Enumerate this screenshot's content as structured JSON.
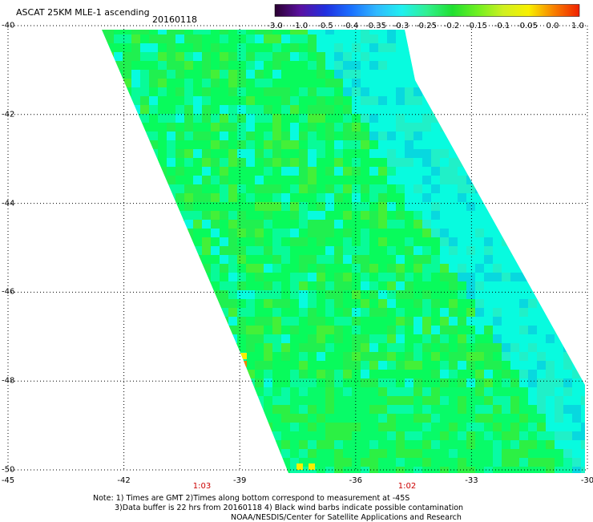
{
  "header": {
    "title": "ASCAT 25KM MLE-1 ascending",
    "date": "20160118"
  },
  "colorbar": {
    "labels": [
      "-3.0",
      "-1.0",
      "-0.5",
      "-0.4",
      "-0.35",
      "-0.3",
      "-0.25",
      "-0.2",
      "-0.15",
      "-0.1",
      "-0.05",
      "0.0",
      "1.0"
    ],
    "colors": [
      "#2a0030",
      "#5a10a0",
      "#2030e0",
      "#1a70ff",
      "#30b8ff",
      "#20f0f0",
      "#30f090",
      "#20e030",
      "#70f020",
      "#d0f020",
      "#f8f000",
      "#f88000",
      "#f02000"
    ]
  },
  "axes": {
    "lat_labels": [
      "-40",
      "-42",
      "-44",
      "-46",
      "-48",
      "-50"
    ],
    "lon_labels": [
      "-45",
      "-42",
      "-39",
      "-36",
      "-33",
      "-30"
    ],
    "time_labels": [
      "1:03",
      "1:02"
    ]
  },
  "notes": {
    "line1": "Note: 1) Times are GMT 2)Times along bottom correspond to measurement at -45S",
    "line2": "3)Data buffer is 22 hrs from 20160118 4) Black wind barbs indicate possible contamination",
    "line3": "NOAA/NESDIS/Center for Satellite Applications and Research"
  }
}
